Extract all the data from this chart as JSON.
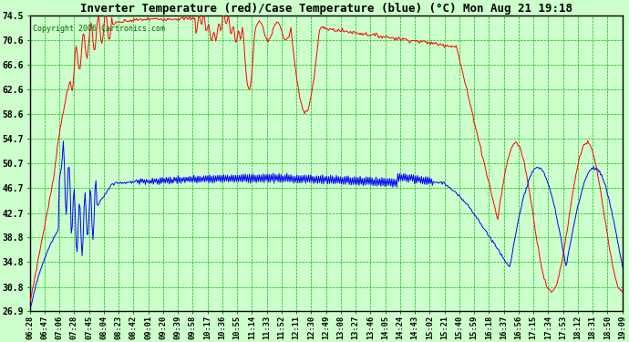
{
  "title": "Inverter Temperature (red)/Case Temperature (blue) (°C) Mon Aug 21 19:18",
  "copyright": "Copyright 2006 Cartronics.com",
  "yticks": [
    26.9,
    30.8,
    34.8,
    38.8,
    42.7,
    46.7,
    50.7,
    54.7,
    58.6,
    62.6,
    66.6,
    70.6,
    74.5
  ],
  "ymin": 26.9,
  "ymax": 74.5,
  "bg_color": "#CCFFCC",
  "grid_color": "#00BB00",
  "line_color_red": "#FF0000",
  "line_color_blue": "#0000FF",
  "border_color": "#000000",
  "xtick_labels": [
    "06:28",
    "06:47",
    "07:06",
    "07:28",
    "07:45",
    "08:04",
    "08:23",
    "08:42",
    "09:01",
    "09:20",
    "09:39",
    "09:58",
    "10:17",
    "10:36",
    "10:55",
    "11:14",
    "11:33",
    "11:52",
    "12:11",
    "12:30",
    "12:49",
    "13:08",
    "13:27",
    "13:46",
    "14:05",
    "14:24",
    "14:43",
    "15:02",
    "15:21",
    "15:40",
    "15:59",
    "16:18",
    "16:37",
    "16:56",
    "17:15",
    "17:34",
    "17:53",
    "18:12",
    "18:31",
    "18:50",
    "19:09"
  ],
  "n_points": 600
}
